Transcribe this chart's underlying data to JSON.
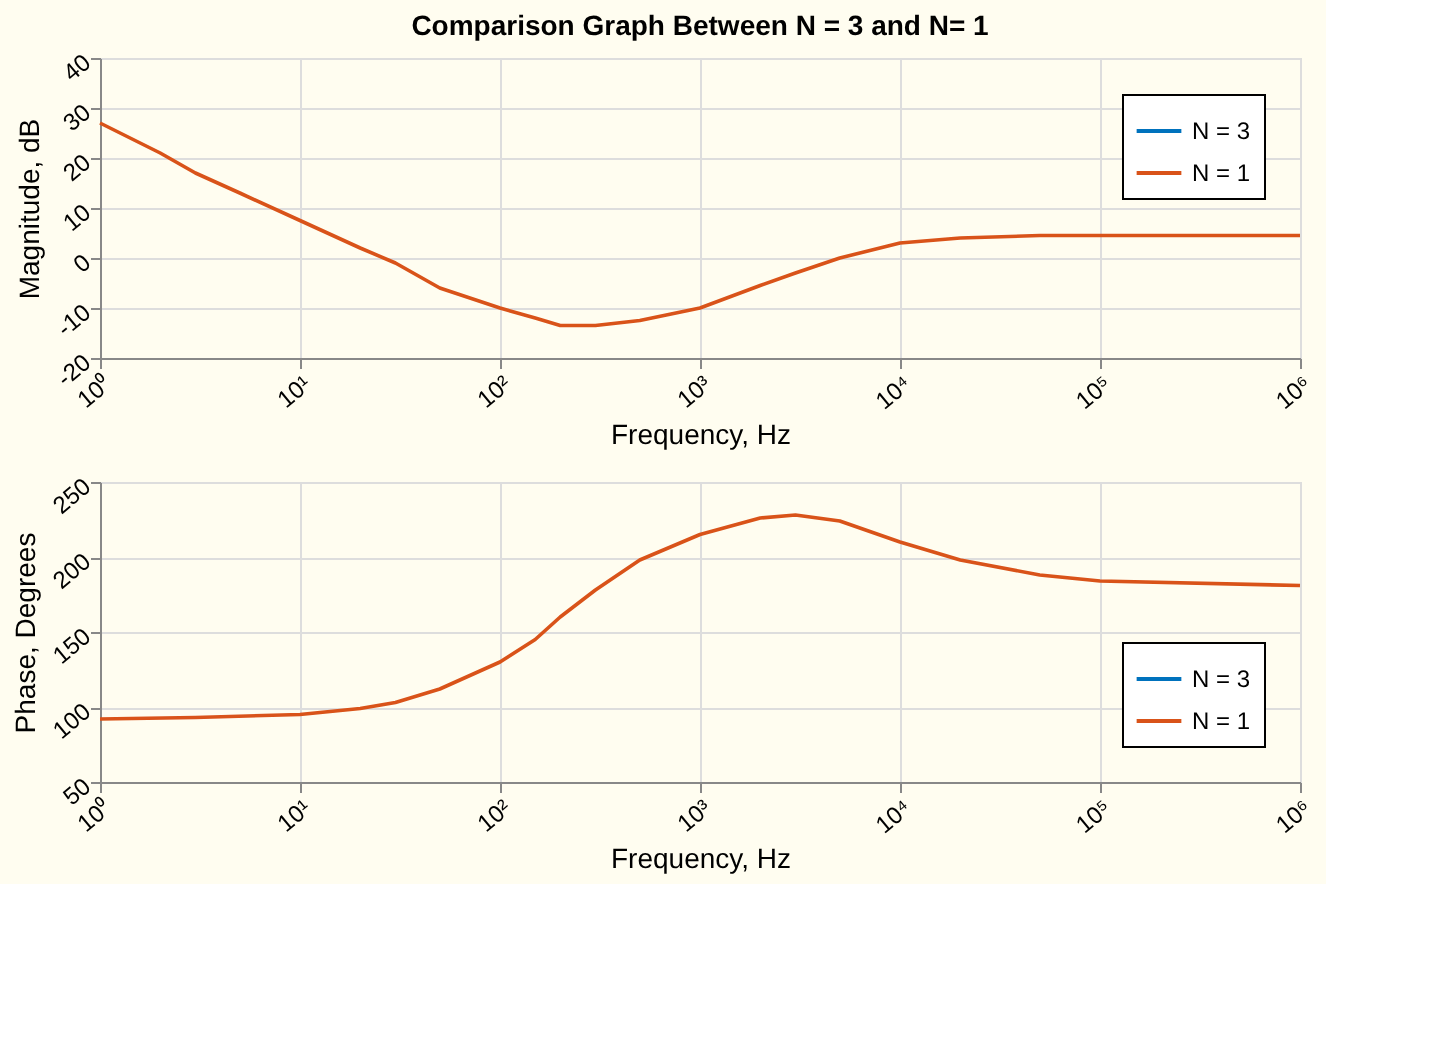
{
  "chart_data": [
    {
      "type": "line",
      "title": "Comparison Graph Between N = 3 and N= 1",
      "xlabel": "Frequency, Hz",
      "ylabel": "Magnitude, dB",
      "log": "x",
      "grid": true,
      "legend": "top right",
      "line_style": "solid",
      "marker": "none",
      "x": [
        1,
        2,
        3,
        5,
        10,
        20,
        30,
        50,
        100,
        150,
        200,
        300,
        500,
        1000,
        2000,
        3000,
        5000,
        10000,
        20000,
        50000,
        100000,
        1000000
      ],
      "series": [
        {
          "name": "N = 3",
          "color": "#0072bd",
          "values": [
            null,
            null,
            null,
            null,
            null,
            null,
            null,
            null,
            null,
            null,
            null,
            null,
            null,
            null,
            null,
            null,
            null,
            null,
            null,
            null,
            null,
            null
          ]
        },
        {
          "name": "N = 1",
          "color": "#d95319",
          "values": [
            27,
            21,
            17,
            13,
            7.5,
            2,
            -1,
            -6,
            -10,
            -12,
            -13.5,
            -13.5,
            -12.5,
            -10,
            -5.5,
            -3,
            0,
            3,
            4,
            4.5,
            4.5,
            4.5
          ]
        }
      ],
      "xlim": [
        1,
        1000000
      ],
      "xticks": [
        {
          "value": 1,
          "label": "10⁰"
        },
        {
          "value": 10,
          "label": "10¹"
        },
        {
          "value": 100,
          "label": "10²"
        },
        {
          "value": 1000,
          "label": "10³"
        },
        {
          "value": 10000,
          "label": "10⁴"
        },
        {
          "value": 100000,
          "label": "10⁵"
        },
        {
          "value": 1000000,
          "label": "10⁶"
        }
      ],
      "ylim": [
        -20,
        40
      ],
      "yticks": [
        -20,
        -10,
        0,
        10,
        20,
        30,
        40
      ]
    },
    {
      "type": "line",
      "xlabel": "Frequency, Hz",
      "ylabel": "Phase, Degrees",
      "log": "x",
      "grid": true,
      "legend": "bottom right",
      "line_style": "solid",
      "marker": "none",
      "x": [
        1,
        3,
        10,
        20,
        30,
        50,
        100,
        150,
        200,
        300,
        500,
        1000,
        2000,
        3000,
        5000,
        10000,
        20000,
        50000,
        100000,
        1000000
      ],
      "series": [
        {
          "name": "N = 3",
          "color": "#0072bd",
          "values": [
            null,
            null,
            null,
            null,
            null,
            null,
            null,
            null,
            null,
            null,
            null,
            null,
            null,
            null,
            null,
            null,
            null,
            null,
            null,
            null
          ]
        },
        {
          "name": "N = 1",
          "color": "#d95319",
          "values": [
            92,
            93,
            95,
            99,
            103,
            112,
            130,
            145,
            160,
            178,
            198,
            215,
            226,
            228,
            224,
            210,
            198,
            188,
            184,
            181
          ]
        }
      ],
      "xlim": [
        1,
        1000000
      ],
      "xticks": [
        {
          "value": 1,
          "label": "10⁰"
        },
        {
          "value": 10,
          "label": "10¹"
        },
        {
          "value": 100,
          "label": "10²"
        },
        {
          "value": 1000,
          "label": "10³"
        },
        {
          "value": 10000,
          "label": "10⁴"
        },
        {
          "value": 100000,
          "label": "10⁵"
        },
        {
          "value": 1000000,
          "label": "10⁶"
        }
      ],
      "ylim": [
        50,
        250
      ],
      "yticks": [
        50,
        100,
        150,
        200,
        250
      ]
    }
  ]
}
